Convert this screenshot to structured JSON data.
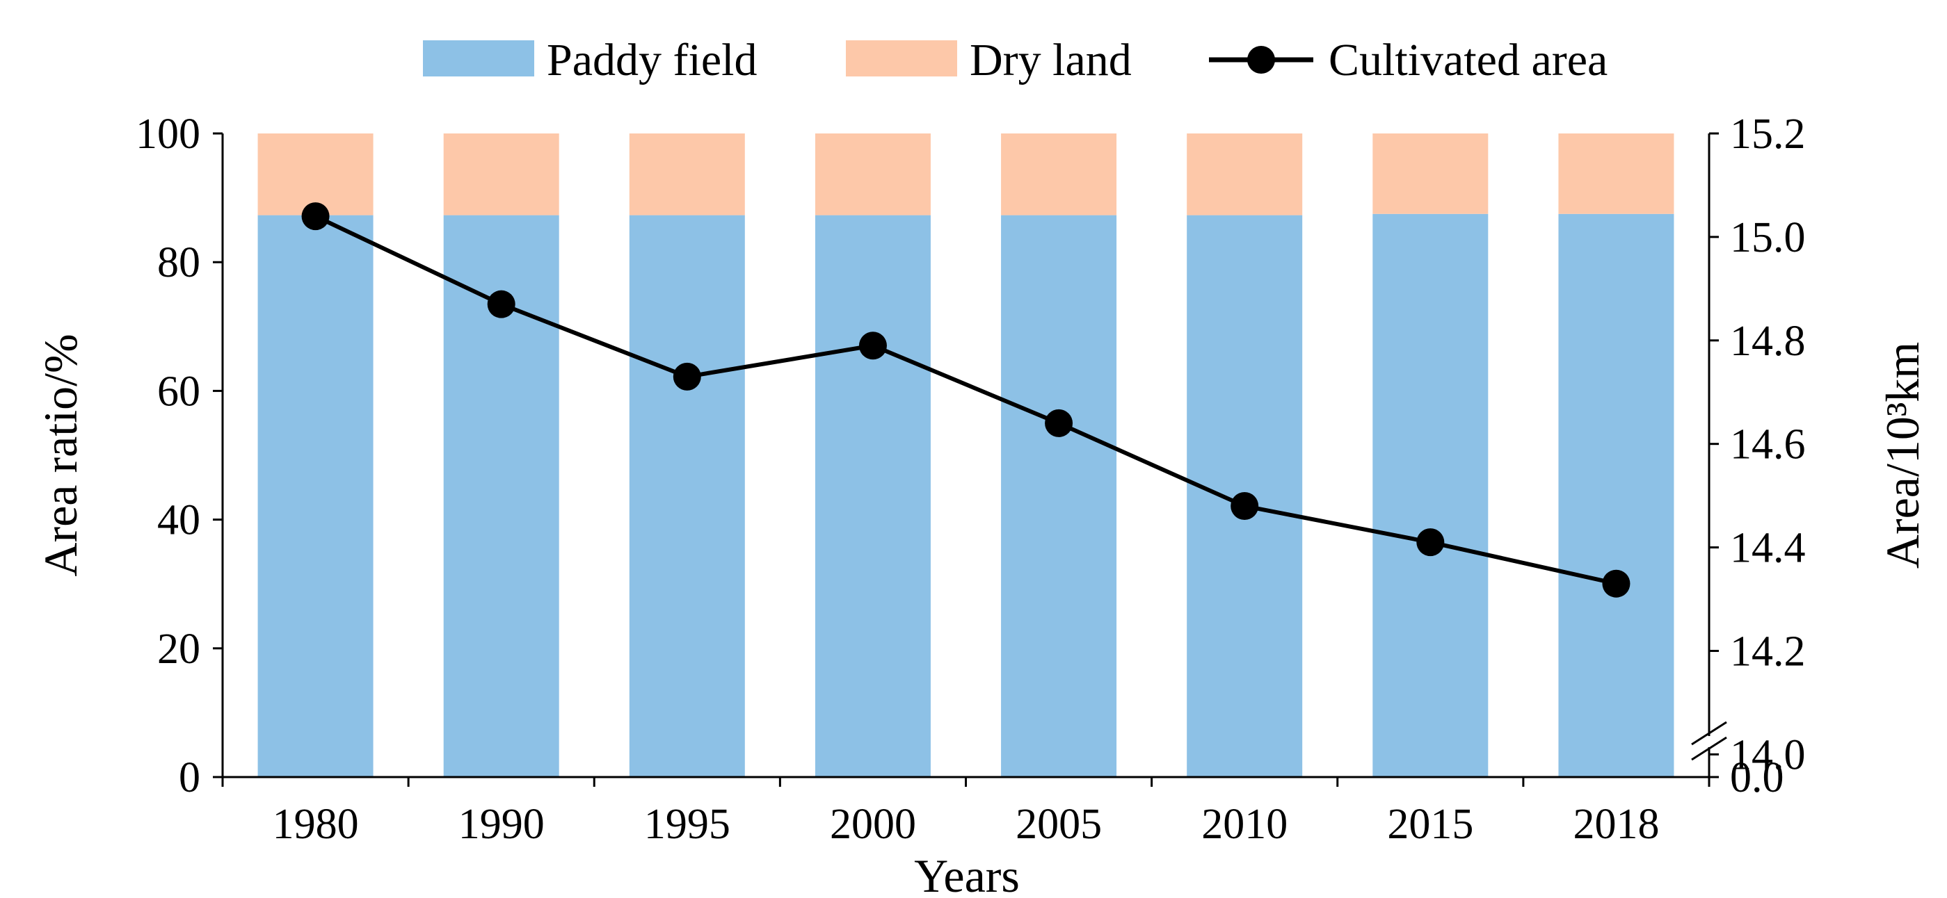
{
  "chart_data": {
    "type": "bar",
    "stacked": true,
    "title": "",
    "xlabel": "Years",
    "ylabel_left": "Area ratio/%",
    "ylabel_right": "Area/10³km",
    "categories": [
      "1980",
      "1990",
      "1995",
      "2000",
      "2005",
      "2010",
      "2015",
      "2018"
    ],
    "ylim_left": [
      0,
      100
    ],
    "yticks_left": [
      "0",
      "20",
      "40",
      "60",
      "80",
      "100"
    ],
    "yticks_right_upper": [
      "14.0",
      "14.2",
      "14.4",
      "14.6",
      "14.8",
      "15.0",
      "15.2"
    ],
    "ytick_right_lower": "0.0",
    "ylim_right_upper": [
      13.95,
      15.2
    ],
    "right_axis_break": true,
    "grid": false,
    "legend_position": "top",
    "series": [
      {
        "name": "Paddy field",
        "kind": "bar",
        "axis": "left",
        "color": "#8DC1E6",
        "values": [
          87.3,
          87.3,
          87.3,
          87.3,
          87.3,
          87.3,
          87.5,
          87.5
        ]
      },
      {
        "name": "Dry land",
        "kind": "bar",
        "axis": "left",
        "color": "#FDC8A9",
        "values": [
          12.7,
          12.7,
          12.7,
          12.7,
          12.7,
          12.7,
          12.5,
          12.5
        ]
      },
      {
        "name": "Cultivated area",
        "kind": "line",
        "axis": "right",
        "color": "#000000",
        "values": [
          15.04,
          14.87,
          14.73,
          14.79,
          14.64,
          14.48,
          14.41,
          14.33
        ]
      }
    ]
  }
}
